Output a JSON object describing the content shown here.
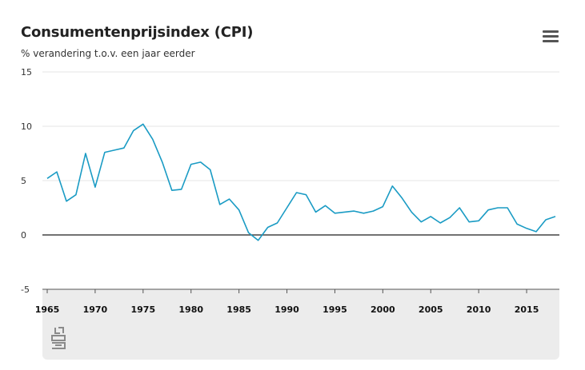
{
  "header": {
    "title": "Consumentenprijsindex (CPI)",
    "subtitle": "% verandering t.o.v. een jaar eerder"
  },
  "icons": {
    "menu": "hamburger-menu-icon",
    "logo": "cbs-logo"
  },
  "colors": {
    "line": "#1a9bc4",
    "zero_line": "#444444",
    "grid": "#e6e6e6",
    "footer": "#ececec"
  },
  "chart_data": {
    "type": "line",
    "title": "Consumentenprijsindex (CPI)",
    "subtitle": "% verandering t.o.v. een jaar eerder",
    "xlabel": "",
    "ylabel": "",
    "xlim": [
      1965,
      2018
    ],
    "ylim": [
      -5,
      15
    ],
    "yticks": [
      15,
      10,
      5,
      0,
      -5
    ],
    "xticks": [
      1965,
      1970,
      1975,
      1980,
      1985,
      1990,
      1995,
      2000,
      2005,
      2010,
      2015
    ],
    "grid": true,
    "legend": "none",
    "series": [
      {
        "x": [
          1965,
          1966,
          1967,
          1968,
          1969,
          1970,
          1971,
          1972,
          1973,
          1974,
          1975,
          1976,
          1977,
          1978,
          1979,
          1980,
          1981,
          1982,
          1983,
          1984,
          1985,
          1986,
          1987,
          1988,
          1989,
          1990,
          1991,
          1992,
          1993,
          1994,
          1995,
          1996,
          1997,
          1998,
          1999,
          2000,
          2001,
          2002,
          2003,
          2004,
          2005,
          2006,
          2007,
          2008,
          2009,
          2010,
          2011,
          2012,
          2013,
          2014,
          2015,
          2016,
          2017,
          2018
        ],
        "values": [
          5.2,
          5.8,
          3.1,
          3.7,
          7.5,
          4.4,
          7.6,
          7.8,
          8.0,
          9.6,
          10.2,
          8.8,
          6.7,
          4.1,
          4.2,
          6.5,
          6.7,
          6.0,
          2.8,
          3.3,
          2.3,
          0.2,
          -0.5,
          0.7,
          1.1,
          2.5,
          3.9,
          3.7,
          2.1,
          2.7,
          2.0,
          2.1,
          2.2,
          2.0,
          2.2,
          2.6,
          4.5,
          3.4,
          2.1,
          1.2,
          1.7,
          1.1,
          1.6,
          2.5,
          1.2,
          1.3,
          2.3,
          2.5,
          2.5,
          1.0,
          0.6,
          0.3,
          1.4,
          1.7
        ]
      }
    ]
  }
}
